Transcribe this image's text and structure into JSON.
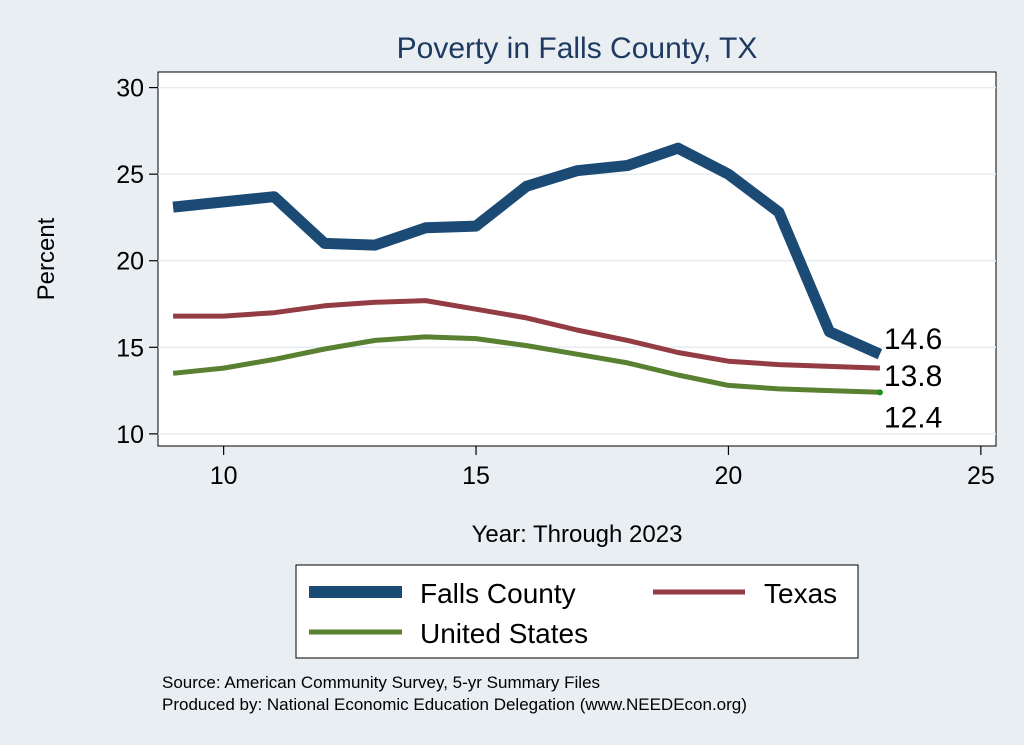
{
  "chart_data": {
    "type": "line",
    "title": "Poverty in Falls County, TX",
    "xlabel": "Year: Through 2023",
    "ylabel": "Percent",
    "xlim": [
      8.7,
      25.3
    ],
    "ylim": [
      9.3,
      30.9
    ],
    "xticks": [
      10,
      15,
      20,
      25
    ],
    "yticks": [
      10,
      15,
      20,
      25,
      30
    ],
    "grid": true,
    "legend_position": "bottom",
    "series": [
      {
        "name": "Falls County",
        "color": "#1b4a74",
        "x": [
          9,
          10,
          11,
          12,
          13,
          14,
          15,
          16,
          17,
          18,
          19,
          20,
          21,
          22,
          23
        ],
        "values": [
          23.1,
          23.4,
          23.7,
          21.0,
          20.9,
          21.9,
          22.0,
          24.3,
          25.2,
          25.5,
          26.5,
          25.0,
          22.8,
          15.9,
          14.6
        ],
        "end_label": "14.6"
      },
      {
        "name": "Texas",
        "color": "#943c44",
        "x": [
          9,
          10,
          11,
          12,
          13,
          14,
          15,
          16,
          17,
          18,
          19,
          20,
          21,
          22,
          23
        ],
        "values": [
          16.8,
          16.8,
          17.0,
          17.4,
          17.6,
          17.7,
          17.2,
          16.7,
          16.0,
          15.4,
          14.7,
          14.2,
          14.0,
          13.9,
          13.8
        ],
        "end_label": "13.8"
      },
      {
        "name": "United States",
        "color": "#5a8031",
        "x": [
          9,
          10,
          11,
          12,
          13,
          14,
          15,
          16,
          17,
          18,
          19,
          20,
          21,
          22,
          23
        ],
        "values": [
          13.5,
          13.8,
          14.3,
          14.9,
          15.4,
          15.6,
          15.5,
          15.1,
          14.6,
          14.1,
          13.4,
          12.8,
          12.6,
          12.5,
          12.4
        ],
        "end_label": "12.4"
      }
    ]
  },
  "footnotes": [
    "Source: American Community Survey, 5-yr Summary Files",
    "Produced by: National Economic Education Delegation (www.NEEDEcon.org)"
  ]
}
